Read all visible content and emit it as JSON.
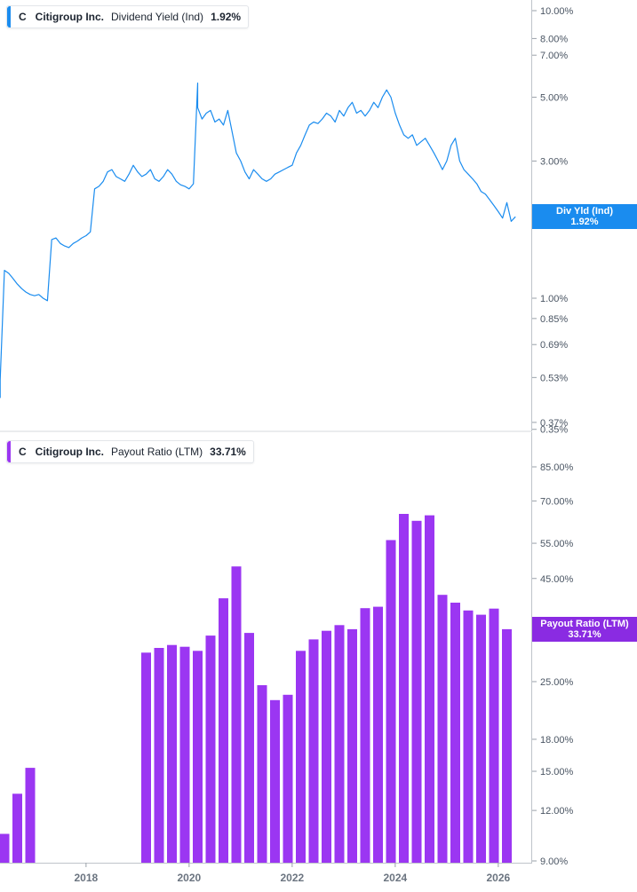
{
  "legend_top": {
    "ticker": "C",
    "company": "Citigroup Inc.",
    "metric": "Dividend Yield (Ind)",
    "value": "1.92%"
  },
  "legend_bottom": {
    "ticker": "C",
    "company": "Payout Ratio (LTM)",
    "company_name": "Citigroup Inc.",
    "value": "33.71%"
  },
  "tag_top": {
    "label": "Div Yld (Ind)",
    "value": "1.92%"
  },
  "tag_bottom": {
    "label": "Payout Ratio (LTM)",
    "value": "33.71%"
  },
  "colors": {
    "yield_line": "#1a8cef",
    "yield_tag": "#1a8cef",
    "payout_bar": "#9b36f2",
    "payout_tag": "#8a2be2",
    "axis": "#bfc4ca",
    "tick_text": "#4a5563",
    "legend_bar_top": "#1a8cef",
    "legend_bar_bottom": "#9b36f2"
  },
  "chart_data": [
    {
      "type": "line",
      "title": "Citigroup Inc. Dividend Yield (Ind)",
      "scale": "log",
      "y_tick_labels": [
        "10.00%",
        "8.00%",
        "7.00%",
        "5.00%",
        "3.00%",
        "1.00%",
        "0.85%",
        "0.69%",
        "0.53%",
        "0.37%",
        "0.35%"
      ],
      "y_ticks": [
        10.0,
        8.0,
        7.0,
        5.0,
        3.0,
        1.0,
        0.85,
        0.69,
        0.53,
        0.37,
        0.35
      ],
      "ylim": [
        0.35,
        10.5
      ],
      "series": [
        {
          "name": "Div Yld (Ind)",
          "x": [
            "2016-05",
            "2016-05",
            "2016-06",
            "2016-07",
            "2016-08",
            "2016-09",
            "2016-10",
            "2016-11",
            "2016-12",
            "2017-01",
            "2017-02",
            "2017-03",
            "2017-04",
            "2017-05",
            "2017-06",
            "2017-07",
            "2017-08",
            "2017-09",
            "2017-10",
            "2017-11",
            "2017-12",
            "2018-01",
            "2018-02",
            "2018-03",
            "2018-04",
            "2018-05",
            "2018-06",
            "2018-07",
            "2018-08",
            "2018-09",
            "2018-10",
            "2018-11",
            "2018-12",
            "2019-01",
            "2019-02",
            "2019-03",
            "2019-04",
            "2019-05",
            "2019-06",
            "2019-07",
            "2019-08",
            "2019-09",
            "2019-10",
            "2019-11",
            "2019-12",
            "2020-01",
            "2020-02",
            "2020-03",
            "2020-03",
            "2020-04",
            "2020-05",
            "2020-06",
            "2020-07",
            "2020-08",
            "2020-09",
            "2020-10",
            "2020-11",
            "2020-12",
            "2021-01",
            "2021-02",
            "2021-03",
            "2021-04",
            "2021-05",
            "2021-06",
            "2021-07",
            "2021-08",
            "2021-09",
            "2021-10",
            "2021-11",
            "2021-12",
            "2022-01",
            "2022-02",
            "2022-03",
            "2022-04",
            "2022-05",
            "2022-06",
            "2022-07",
            "2022-08",
            "2022-09",
            "2022-10",
            "2022-11",
            "2022-12",
            "2023-01",
            "2023-02",
            "2023-03",
            "2023-04",
            "2023-05",
            "2023-06",
            "2023-07",
            "2023-08",
            "2023-09",
            "2023-10",
            "2023-11",
            "2023-12",
            "2024-01",
            "2024-02",
            "2024-03",
            "2024-04",
            "2024-05",
            "2024-06",
            "2024-07",
            "2024-08",
            "2024-09",
            "2024-10",
            "2024-11",
            "2024-12",
            "2025-01",
            "2025-02",
            "2025-03",
            "2025-04",
            "2025-05",
            "2025-06",
            "2025-07",
            "2025-08",
            "2025-09",
            "2025-10",
            "2025-11",
            "2025-12",
            "2026-01",
            "2026-02",
            "2026-03",
            "2026-04",
            "2026-05"
          ],
          "y": [
            0.45,
            0.52,
            1.25,
            1.22,
            1.17,
            1.12,
            1.08,
            1.05,
            1.03,
            1.02,
            1.03,
            1.0,
            0.98,
            1.6,
            1.62,
            1.55,
            1.52,
            1.5,
            1.55,
            1.58,
            1.62,
            1.65,
            1.7,
            2.4,
            2.45,
            2.55,
            2.75,
            2.8,
            2.65,
            2.6,
            2.55,
            2.7,
            2.9,
            2.75,
            2.65,
            2.7,
            2.8,
            2.6,
            2.55,
            2.65,
            2.8,
            2.7,
            2.55,
            2.48,
            2.45,
            2.4,
            2.5,
            5.6,
            4.6,
            4.2,
            4.4,
            4.5,
            4.1,
            4.2,
            4.0,
            4.5,
            3.8,
            3.2,
            3.0,
            2.75,
            2.6,
            2.8,
            2.7,
            2.6,
            2.55,
            2.6,
            2.7,
            2.75,
            2.8,
            2.85,
            2.9,
            3.2,
            3.4,
            3.7,
            4.0,
            4.1,
            4.05,
            4.2,
            4.4,
            4.3,
            4.1,
            4.5,
            4.3,
            4.6,
            4.8,
            4.4,
            4.5,
            4.3,
            4.5,
            4.8,
            4.6,
            5.0,
            5.3,
            5.0,
            4.4,
            4.0,
            3.7,
            3.6,
            3.7,
            3.4,
            3.5,
            3.6,
            3.4,
            3.2,
            3.0,
            2.8,
            3.0,
            3.4,
            3.6,
            3.0,
            2.8,
            2.7,
            2.6,
            2.5,
            2.35,
            2.3,
            2.2,
            2.1,
            2.0,
            1.9,
            2.15,
            1.85,
            1.92
          ]
        }
      ]
    },
    {
      "type": "bar",
      "title": "Citigroup Inc. Payout Ratio (LTM)",
      "scale": "log",
      "x_tick_labels": [
        "2018",
        "2020",
        "2022",
        "2024",
        "2026"
      ],
      "x_ticks": [
        "2018-01",
        "2020-01",
        "2022-01",
        "2024-01",
        "2026-01"
      ],
      "y_tick_labels": [
        "85.00%",
        "70.00%",
        "55.00%",
        "45.00%",
        "25.00%",
        "18.00%",
        "15.00%",
        "12.00%",
        "9.00%"
      ],
      "y_ticks": [
        85,
        70,
        55,
        45,
        25,
        18,
        15,
        12,
        9
      ],
      "ylim": [
        9,
        100
      ],
      "series": [
        {
          "name": "Payout Ratio (LTM)",
          "x": [
            "2016-06",
            "2016-09",
            "2016-12",
            "2019-03",
            "2019-06",
            "2019-09",
            "2019-12",
            "2020-03",
            "2020-06",
            "2020-09",
            "2020-12",
            "2021-03",
            "2021-06",
            "2021-09",
            "2021-12",
            "2022-03",
            "2022-06",
            "2022-09",
            "2022-12",
            "2023-03",
            "2023-06",
            "2023-09",
            "2023-12",
            "2024-03",
            "2024-06",
            "2024-09",
            "2024-12",
            "2025-03",
            "2025-06",
            "2025-09",
            "2025-12",
            "2026-03"
          ],
          "values": [
            10.5,
            13.2,
            15.3,
            29.5,
            30.3,
            30.8,
            30.5,
            29.8,
            32.5,
            40.2,
            48.2,
            33.0,
            24.5,
            22.5,
            23.2,
            29.8,
            31.8,
            33.4,
            34.5,
            33.7,
            38.0,
            38.3,
            56.0,
            65.0,
            62.5,
            64.5,
            41.0,
            39.2,
            37.5,
            36.6,
            37.9,
            33.71
          ]
        }
      ]
    }
  ]
}
